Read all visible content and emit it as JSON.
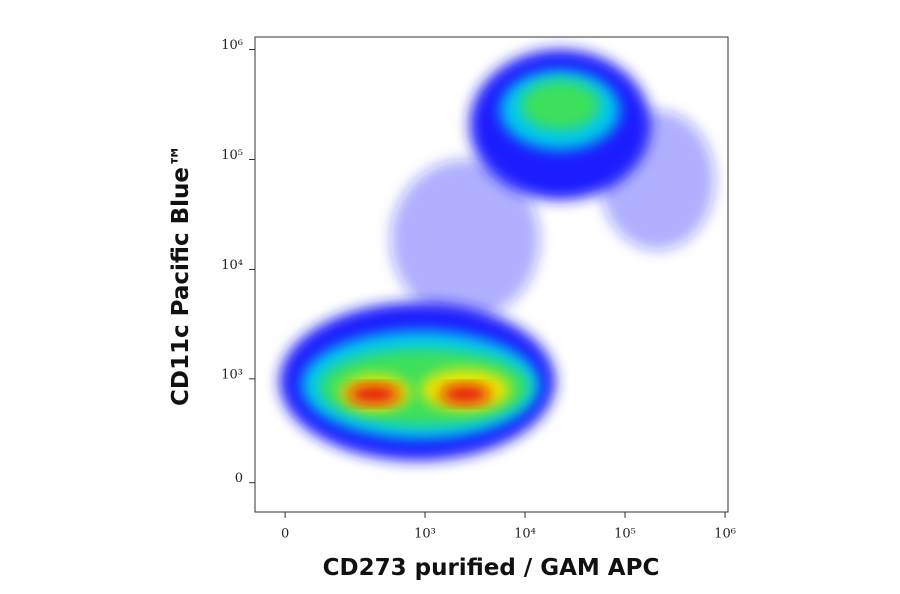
{
  "chart_data": {
    "type": "density",
    "x_label": "CD273 purified / GAM APC",
    "y_label": "CD11c Pacific Blue™",
    "xscale": "biexponential",
    "x_width": 80,
    "yscale": "biexponential",
    "y_width": 230,
    "xlim": [
      -60,
      1070000
    ],
    "ylim": [
      -150,
      1300000
    ],
    "xticks": [
      0,
      {
        "value": 1000,
        "label": "10³"
      },
      {
        "value": 10000,
        "label": "10⁴"
      },
      {
        "value": 100000,
        "label": "10⁵"
      },
      {
        "value": 1000000,
        "label": "10⁶"
      }
    ],
    "yticks": [
      0,
      {
        "value": 1000,
        "label": "10³"
      },
      {
        "value": 10000,
        "label": "10⁴"
      },
      {
        "value": 100000,
        "label": "10⁵"
      },
      {
        "value": 1000000,
        "label": "10⁶"
      }
    ],
    "layers": [
      {
        "color": "#1a1aff",
        "opacity": 0.35,
        "regions": [
          {
            "x": [
              450,
              14000
            ],
            "y": [
              3500,
              100000
            ]
          },
          {
            "x": [
              56000,
              790000
            ],
            "y": [
              15000,
              280000
            ]
          }
        ]
      },
      {
        "color": "#1a1aff",
        "opacity": 1,
        "regions": [
          {
            "x": [
              -10,
              20000
            ],
            "y": [
              110,
              5000
            ]
          },
          {
            "x": [
              2800,
              180000
            ],
            "y": [
              43000,
              1000000
            ]
          }
        ]
      },
      {
        "color": "#00c8f0",
        "opacity": 1,
        "regions": [
          {
            "x": [
              30,
              14000
            ],
            "y": [
              240,
              2800
            ]
          },
          {
            "x": [
              5600,
              89000
            ],
            "y": [
              122000,
              650000
            ]
          }
        ]
      },
      {
        "color": "#3de05a",
        "opacity": 1,
        "regions": [
          {
            "x": [
              70,
              11000
            ],
            "y": [
              350,
              1900
            ]
          },
          {
            "x": [
              9000,
              56000
            ],
            "y": [
              186000,
              527000
            ]
          }
        ]
      },
      {
        "color": "#f2e600",
        "opacity": 1,
        "regions": [
          {
            "x": [
              131,
              715
            ],
            "y": [
              500,
              1090
            ]
          },
          {
            "x": [
              900,
              7100
            ],
            "y": [
              500,
              1230
            ]
          }
        ]
      },
      {
        "color": "#e81010",
        "opacity": 1,
        "regions": [
          {
            "x": [
              160,
              560
            ],
            "y": [
              580,
              880
            ]
          },
          {
            "x": [
              1420,
              4500
            ],
            "y": [
              580,
              880
            ]
          }
        ]
      }
    ]
  }
}
